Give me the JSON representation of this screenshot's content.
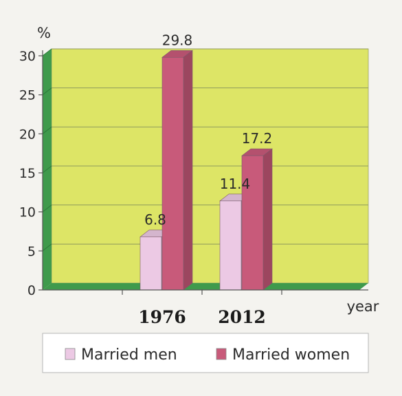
{
  "chart_data": {
    "type": "bar",
    "title": "",
    "ylabel": "%",
    "xlabel": "year",
    "ylim": [
      0,
      30
    ],
    "yticks": [
      0,
      5,
      10,
      15,
      20,
      25,
      30
    ],
    "categories": [
      "1976",
      "2012"
    ],
    "series": [
      {
        "name": "Married men",
        "values": [
          6.8,
          11.4
        ],
        "color": "#ecc9e4"
      },
      {
        "name": "Married women",
        "values": [
          29.8,
          17.2
        ],
        "color": "#c85a7a"
      }
    ],
    "value_labels": [
      [
        "6.8",
        "11.4"
      ],
      [
        "29.8",
        "17.2"
      ]
    ],
    "grid": true,
    "plot_background": "#dde566",
    "wall_color": "#3f9a4c",
    "legend_position": "bottom"
  }
}
